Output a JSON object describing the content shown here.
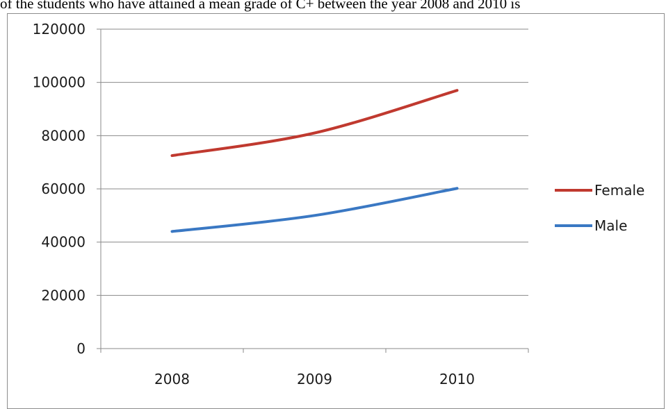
{
  "caption": "of the students who have attained a mean grade of C+ between the year 2008 and 2010 is",
  "chart_data": {
    "type": "line",
    "title": "",
    "xlabel": "",
    "ylabel": "",
    "categories": [
      "2008",
      "2009",
      "2010"
    ],
    "ylim": [
      0,
      120000
    ],
    "yticks": [
      0,
      20000,
      40000,
      60000,
      80000,
      100000,
      120000
    ],
    "grid": true,
    "legend_position": "right",
    "series": [
      {
        "name": "Female",
        "color": "#c0392f",
        "values": [
          72500,
          81000,
          97000
        ]
      },
      {
        "name": "Male",
        "color": "#3a78c3",
        "values": [
          44000,
          50000,
          60200
        ]
      }
    ]
  }
}
